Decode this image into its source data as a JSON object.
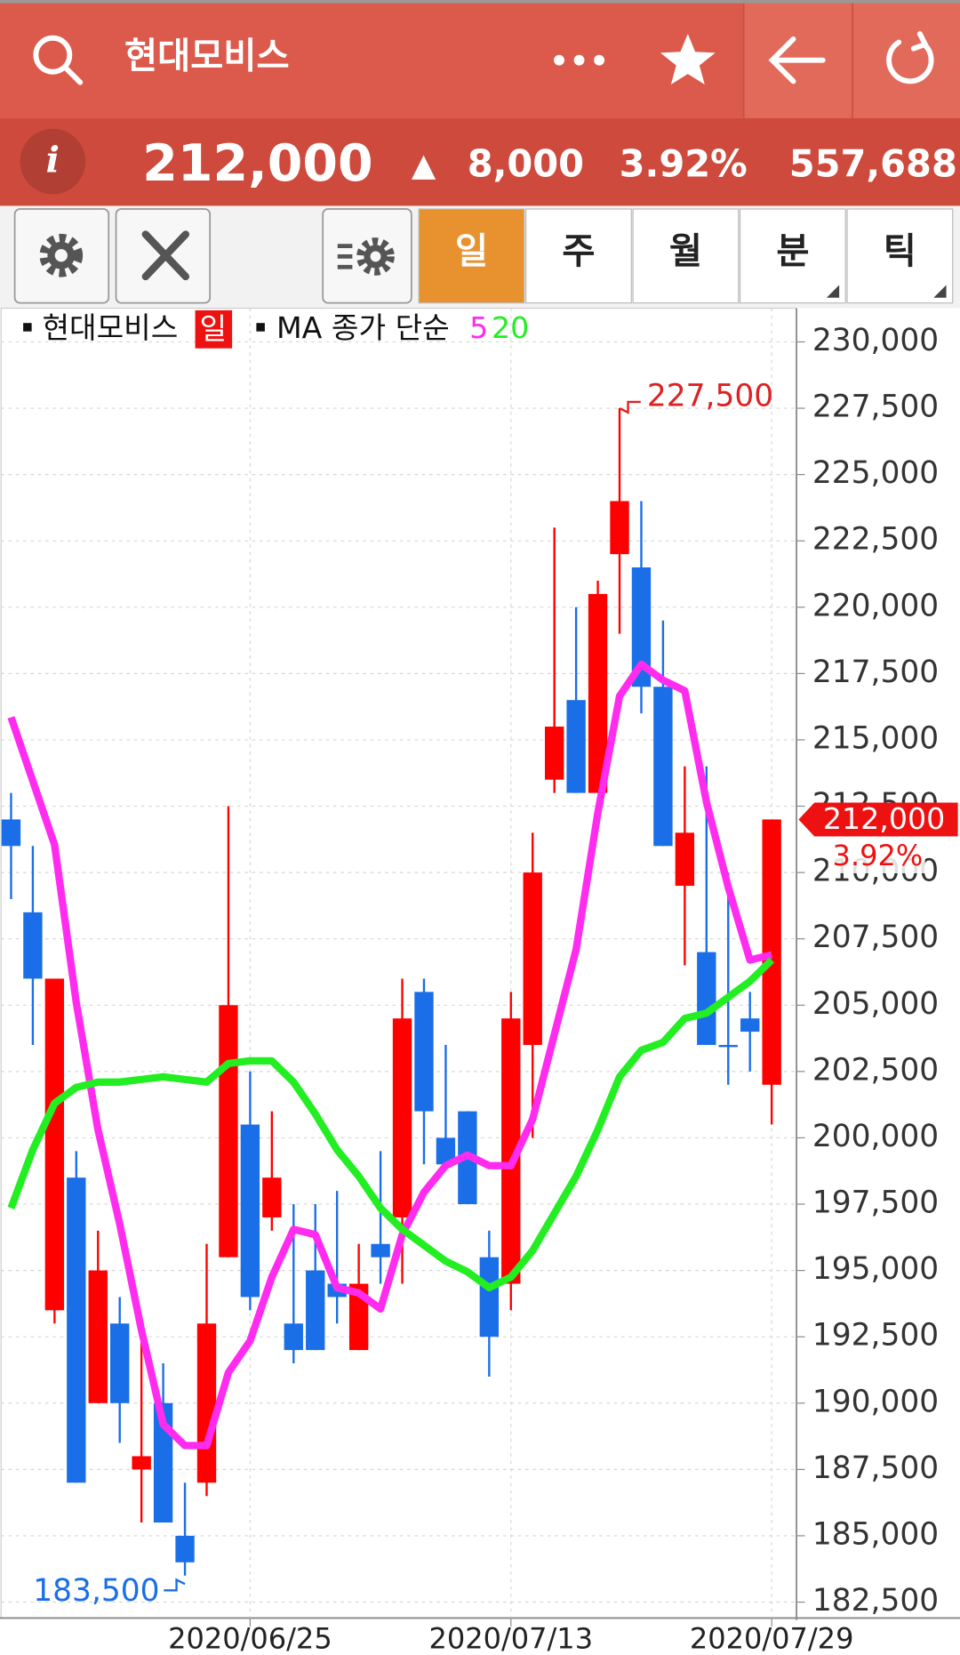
{
  "header": {
    "title": "현대모비스"
  },
  "quote": {
    "price": "212,000",
    "direction": "▲",
    "change": "8,000",
    "change_pct": "3.92%",
    "volume": "557,688"
  },
  "periods": [
    "일",
    "주",
    "월",
    "분",
    "틱"
  ],
  "chart_data": {
    "type": "candlestick",
    "legend": {
      "symbol": "현대모비스",
      "period": "일",
      "ma_label": "MA 종가 단순"
    },
    "categories": [
      null,
      null,
      null,
      null,
      null,
      null,
      null,
      null,
      null,
      null,
      null,
      "2020/06/25",
      null,
      null,
      null,
      null,
      null,
      null,
      null,
      null,
      null,
      null,
      null,
      "2020/07/13",
      null,
      null,
      null,
      null,
      null,
      null,
      null,
      null,
      null,
      null,
      null,
      "2020/07/29"
    ],
    "open": [
      212000,
      208500,
      193500,
      198500,
      190000,
      193000,
      187500,
      190000,
      185000,
      187000,
      195500,
      200500,
      197000,
      193000,
      195000,
      194500,
      192000,
      196000,
      197000,
      205500,
      200000,
      201000,
      195500,
      194500,
      203500,
      213500,
      216500,
      213000,
      222000,
      221500,
      217000,
      209500,
      207000,
      203500,
      204500,
      202000
    ],
    "high": [
      213000,
      211000,
      206000,
      199500,
      196500,
      194000,
      193000,
      191500,
      187000,
      196000,
      212500,
      202500,
      201000,
      197500,
      197500,
      198000,
      196000,
      199500,
      206000,
      206000,
      203500,
      201000,
      196500,
      205500,
      211500,
      223000,
      220000,
      221000,
      227500,
      224000,
      219500,
      214000,
      214000,
      210000,
      205500,
      212000
    ],
    "low": [
      209000,
      203500,
      193000,
      187000,
      190000,
      188500,
      185500,
      185500,
      183500,
      186500,
      195500,
      193500,
      196500,
      191500,
      192000,
      193000,
      192000,
      194500,
      194500,
      199000,
      199000,
      197500,
      191000,
      193500,
      200000,
      213000,
      213000,
      213000,
      219000,
      216000,
      211000,
      206500,
      203500,
      202000,
      202500,
      200500
    ],
    "close": [
      211000,
      206000,
      206000,
      187000,
      195000,
      190000,
      188000,
      185500,
      184000,
      193000,
      205000,
      194000,
      198500,
      192000,
      192000,
      194000,
      194500,
      195500,
      204500,
      201000,
      199000,
      197500,
      192500,
      204500,
      210000,
      215500,
      213000,
      220500,
      224000,
      217000,
      211000,
      211500,
      203500,
      203500,
      204000,
      212000
    ],
    "up_color": "#ff0000",
    "down_color": "#1a6ee8",
    "series": [
      {
        "name": "5",
        "color": "#ff2cf0",
        "values": [
          215850,
          213450,
          211050,
          205100,
          200300,
          196750,
          192750,
          189200,
          188400,
          188400,
          191150,
          192350,
          194750,
          196550,
          196350,
          194350,
          194150,
          193550,
          196350,
          197950,
          198950,
          199350,
          198950,
          198950,
          200700,
          203900,
          207100,
          212250,
          216650,
          217850,
          217250,
          216850,
          212650,
          209450,
          206700,
          206900
        ]
      },
      {
        "name": "20",
        "color": "#22ee22",
        "values": [
          197350,
          199550,
          201300,
          201900,
          202100,
          202100,
          202200,
          202300,
          202200,
          202100,
          202800,
          202900,
          202900,
          202100,
          200900,
          199550,
          198550,
          197350,
          196550,
          195950,
          195350,
          194950,
          194350,
          194750,
          195750,
          197150,
          198550,
          200300,
          202300,
          203300,
          203600,
          204500,
          204700,
          205300,
          205900,
          206700
        ]
      }
    ],
    "ylim": [
      181900,
      231150
    ],
    "yticks": [
      {
        "value": 182500,
        "label": "182,500"
      },
      {
        "value": 185000,
        "label": "185,000"
      },
      {
        "value": 187500,
        "label": "187,500"
      },
      {
        "value": 190000,
        "label": "190,000"
      },
      {
        "value": 192500,
        "label": "192,500"
      },
      {
        "value": 195000,
        "label": "195,000"
      },
      {
        "value": 197500,
        "label": "197,500"
      },
      {
        "value": 200000,
        "label": "200,000"
      },
      {
        "value": 202500,
        "label": "202,500"
      },
      {
        "value": 205000,
        "label": "205,000"
      },
      {
        "value": 207500,
        "label": "207,500"
      },
      {
        "value": 210000,
        "label": "210,000"
      },
      {
        "value": 212500,
        "label": "212,500"
      },
      {
        "value": 215000,
        "label": "215,000"
      },
      {
        "value": 217500,
        "label": "217,500"
      },
      {
        "value": 220000,
        "label": "220,000"
      },
      {
        "value": 222500,
        "label": "222,500"
      },
      {
        "value": 225000,
        "label": "225,000"
      },
      {
        "value": 227500,
        "label": "227,500"
      },
      {
        "value": 230000,
        "label": "230,000"
      }
    ],
    "grid": true,
    "high_label": {
      "value": 227500,
      "label": "227,500"
    },
    "low_label": {
      "value": 183500,
      "label": "183,500"
    },
    "last_price_label": {
      "value": 212000,
      "label": "212,000"
    },
    "change_label": "3.92%"
  }
}
